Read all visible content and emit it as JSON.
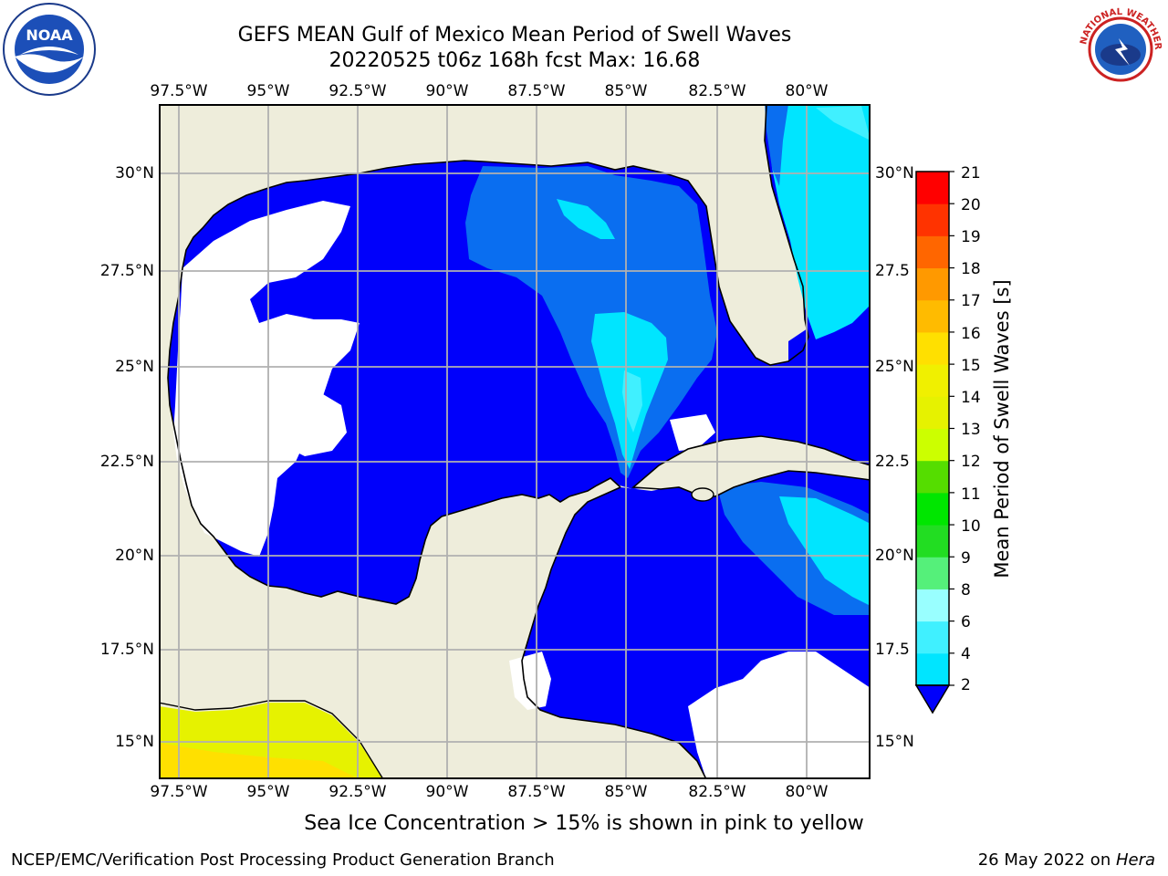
{
  "header": {
    "title_line1": "GEFS MEAN Gulf of Mexico Mean Period of Swell Waves",
    "title_line2": "20220525 t06z 168h fcst   Max: 16.68"
  },
  "logos": {
    "left": {
      "name": "noaa-logo",
      "text": "NOAA",
      "ring_text": "NATIONAL OCEANIC AND ATMOSPHERIC ADMINISTRATION · U.S. DEPARTMENT OF COMMERCE"
    },
    "right": {
      "name": "nws-logo",
      "ring_text": "NATIONAL WEATHER SERVICE"
    }
  },
  "map": {
    "lon_ticks": [
      "97.5°W",
      "95°W",
      "92.5°W",
      "90°W",
      "87.5°W",
      "85°W",
      "82.5°W",
      "80°W"
    ],
    "lat_ticks": [
      "30°N",
      "27.5°N",
      "25°N",
      "22.5°N",
      "20°N",
      "17.5°N",
      "15°N"
    ],
    "lat_ticks_right": [
      "30°N",
      "27.5",
      "25°N",
      "22.5",
      "20°N",
      "17.5",
      "15°N"
    ],
    "colors": {
      "land": "#eeeddb",
      "ocean_low": "#0000fb",
      "grid": "#b0b0b0",
      "coast": "#000000"
    }
  },
  "colorbar": {
    "label": "Mean Period of Swell Waves [s]",
    "ticks": [
      "2",
      "4",
      "6",
      "8",
      "9",
      "10",
      "11",
      "12",
      "13",
      "14",
      "15",
      "16",
      "17",
      "18",
      "19",
      "20",
      "21"
    ],
    "colors": [
      "#0a6ef0",
      "#00e5ff",
      "#40f0ff",
      "#99ffff",
      "#55f07a",
      "#22dd22",
      "#00e600",
      "#55dd00",
      "#ccff00",
      "#e6f200",
      "#f0f000",
      "#ffe000",
      "#ffbb00",
      "#ff9900",
      "#ff6600",
      "#ff3300",
      "#ff0000"
    ]
  },
  "footer": {
    "ice_note": "Sea Ice Concentration > 15% is shown in pink to yellow",
    "left": "NCEP/EMC/Verification Post Processing Product Generation Branch",
    "right_prefix": "26 May 2022 on ",
    "right_host": "Hera"
  }
}
